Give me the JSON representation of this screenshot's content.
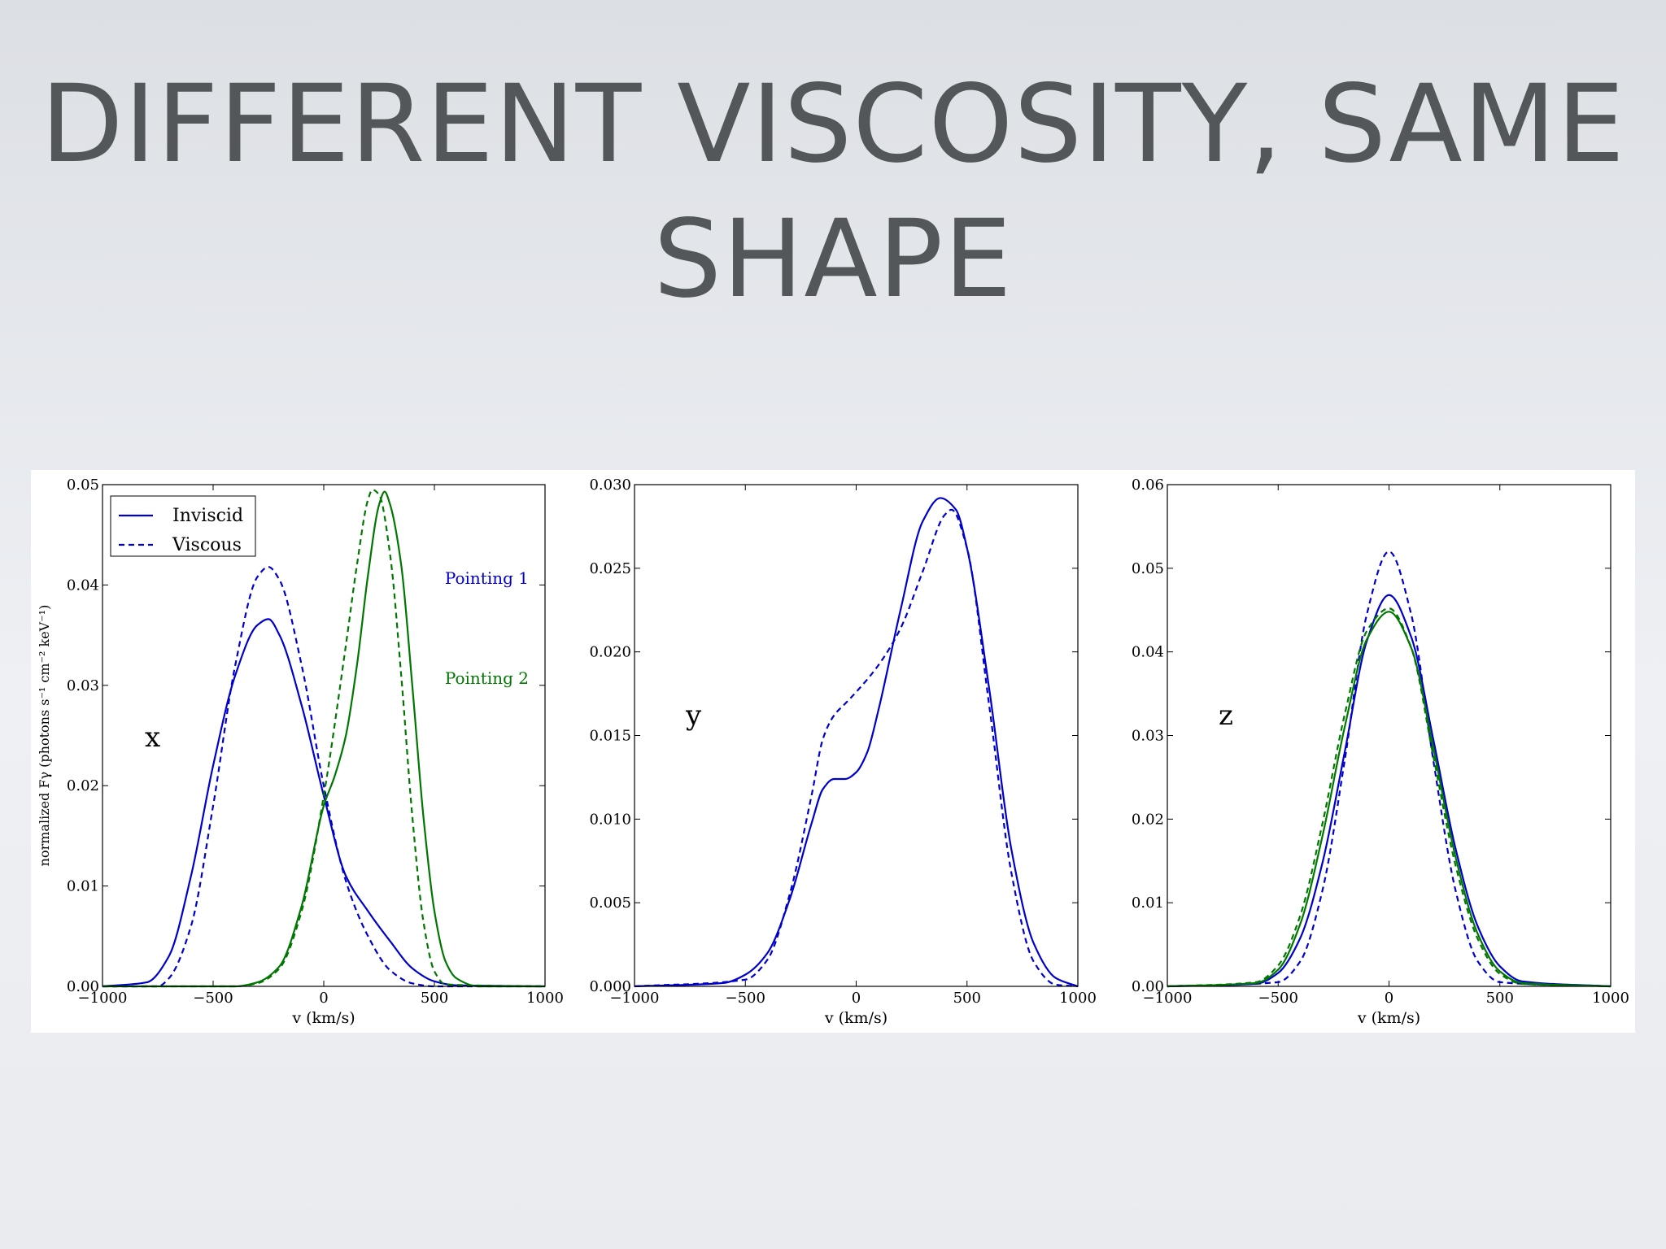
{
  "slide": {
    "title_line1": "DIFFERENT VISCOSITY, SAME",
    "title_line2": "SHAPE"
  },
  "colors": {
    "blue": "#0000cc",
    "green": "#007700",
    "axis": "#000000"
  },
  "legend": {
    "position": "top-left",
    "entries": [
      {
        "label": "Inviscid",
        "style": "solid"
      },
      {
        "label": "Viscous",
        "style": "dashed"
      }
    ]
  },
  "chart_data": [
    {
      "type": "line",
      "panel_label": "x",
      "xlabel": "v (km/s)",
      "ylabel": "normalized Fγ (photons s⁻¹ cm⁻² keV⁻¹)",
      "xlim": [
        -1000,
        1000
      ],
      "ylim": [
        0,
        0.05
      ],
      "xticks": [
        "−1000",
        "−500",
        "0",
        "500",
        "1000"
      ],
      "yticks": [
        "0.00",
        "0.01",
        "0.02",
        "0.03",
        "0.04",
        "0.05"
      ],
      "annotations": [
        {
          "text": "Pointing 1",
          "color": "blue"
        },
        {
          "text": "Pointing 2",
          "color": "green"
        }
      ],
      "series": [
        {
          "color": "blue",
          "style": "solid",
          "x": [
            -1000,
            -800,
            -700,
            -600,
            -500,
            -400,
            -300,
            -250,
            -200,
            -100,
            0,
            100,
            200,
            300,
            400,
            500,
            600,
            1000
          ],
          "y": [
            0,
            0.0004,
            0.003,
            0.011,
            0.022,
            0.031,
            0.036,
            0.0366,
            0.035,
            0.028,
            0.019,
            0.011,
            0.0075,
            0.0045,
            0.0018,
            0.0005,
            0.0001,
            0
          ]
        },
        {
          "color": "blue",
          "style": "dashed",
          "x": [
            -1000,
            -750,
            -700,
            -600,
            -500,
            -400,
            -300,
            -250,
            -200,
            -100,
            0,
            100,
            200,
            300,
            400,
            500,
            1000
          ],
          "y": [
            0,
            0,
            0.0008,
            0.006,
            0.018,
            0.032,
            0.0408,
            0.0418,
            0.0405,
            0.032,
            0.02,
            0.0105,
            0.005,
            0.0016,
            0.0003,
            0,
            0
          ]
        },
        {
          "color": "green",
          "style": "solid",
          "x": [
            -1000,
            -400,
            -300,
            -200,
            -100,
            0,
            50,
            100,
            150,
            200,
            250,
            275,
            300,
            350,
            400,
            450,
            500,
            550,
            600,
            700,
            1000
          ],
          "y": [
            0,
            0,
            0.0004,
            0.002,
            0.008,
            0.018,
            0.021,
            0.025,
            0.032,
            0.041,
            0.048,
            0.0493,
            0.048,
            0.042,
            0.03,
            0.017,
            0.0075,
            0.0025,
            0.0008,
            0,
            0
          ]
        },
        {
          "color": "green",
          "style": "dashed",
          "x": [
            -1000,
            -400,
            -300,
            -200,
            -100,
            0,
            100,
            150,
            200,
            220,
            250,
            300,
            350,
            400,
            450,
            500,
            550,
            1000
          ],
          "y": [
            0,
            0,
            0.0003,
            0.0018,
            0.0075,
            0.019,
            0.034,
            0.042,
            0.0485,
            0.0495,
            0.049,
            0.043,
            0.031,
            0.017,
            0.0065,
            0.0015,
            0.0002,
            0
          ]
        }
      ]
    },
    {
      "type": "line",
      "panel_label": "y",
      "xlabel": "v (km/s)",
      "ylabel": "",
      "xlim": [
        -1000,
        1000
      ],
      "ylim": [
        0,
        0.03
      ],
      "xticks": [
        "−1000",
        "−500",
        "0",
        "500",
        "1000"
      ],
      "yticks": [
        "0.000",
        "0.005",
        "0.010",
        "0.015",
        "0.020",
        "0.025",
        "0.030"
      ],
      "annotations": [],
      "series": [
        {
          "color": "blue",
          "style": "solid",
          "x": [
            -1000,
            -600,
            -500,
            -400,
            -300,
            -200,
            -150,
            -100,
            -50,
            0,
            50,
            100,
            200,
            300,
            380,
            450,
            500,
            600,
            700,
            800,
            900,
            1000
          ],
          "y": [
            0,
            0.0002,
            0.0007,
            0.002,
            0.0052,
            0.0098,
            0.0118,
            0.0124,
            0.0124,
            0.0128,
            0.014,
            0.0165,
            0.0225,
            0.0278,
            0.0292,
            0.0285,
            0.0262,
            0.0178,
            0.0082,
            0.0026,
            0.0005,
            0
          ]
        },
        {
          "color": "blue",
          "style": "dashed",
          "x": [
            -1000,
            -500,
            -400,
            -300,
            -200,
            -150,
            -100,
            -50,
            0,
            100,
            200,
            300,
            400,
            430,
            500,
            600,
            700,
            800,
            900,
            1000
          ],
          "y": [
            0,
            0.0004,
            0.0016,
            0.0055,
            0.0115,
            0.0148,
            0.0162,
            0.0169,
            0.0176,
            0.0192,
            0.0214,
            0.0248,
            0.0282,
            0.0285,
            0.0262,
            0.0168,
            0.0068,
            0.0015,
            0.0001,
            0
          ]
        }
      ]
    },
    {
      "type": "line",
      "panel_label": "z",
      "xlabel": "v (km/s)",
      "ylabel": "",
      "xlim": [
        -1000,
        1000
      ],
      "ylim": [
        0,
        0.06
      ],
      "xticks": [
        "−1000",
        "−500",
        "0",
        "500",
        "1000"
      ],
      "yticks": [
        "0.00",
        "0.01",
        "0.02",
        "0.03",
        "0.04",
        "0.05",
        "0.06"
      ],
      "annotations": [],
      "series": [
        {
          "color": "blue",
          "style": "solid",
          "x": [
            -1000,
            -600,
            -500,
            -400,
            -300,
            -200,
            -100,
            0,
            100,
            200,
            300,
            400,
            500,
            600,
            1000
          ],
          "y": [
            0,
            0.0003,
            0.0016,
            0.0058,
            0.0148,
            0.028,
            0.0413,
            0.0468,
            0.0418,
            0.0295,
            0.0165,
            0.0072,
            0.0024,
            0.0006,
            0
          ]
        },
        {
          "color": "blue",
          "style": "dashed",
          "x": [
            -1000,
            -500,
            -400,
            -300,
            -200,
            -100,
            0,
            100,
            200,
            300,
            400,
            500,
            1000
          ],
          "y": [
            0,
            0.0005,
            0.003,
            0.0115,
            0.027,
            0.0445,
            0.052,
            0.0445,
            0.027,
            0.0115,
            0.003,
            0.0005,
            0
          ]
        },
        {
          "color": "green",
          "style": "solid",
          "x": [
            -1000,
            -600,
            -500,
            -400,
            -300,
            -200,
            -100,
            0,
            100,
            200,
            300,
            400,
            500,
            600,
            1000
          ],
          "y": [
            0,
            0.0004,
            0.002,
            0.0075,
            0.018,
            0.031,
            0.0415,
            0.0448,
            0.0405,
            0.0285,
            0.0155,
            0.0063,
            0.0018,
            0.0004,
            0
          ]
        },
        {
          "color": "green",
          "style": "dashed",
          "x": [
            -1000,
            -600,
            -500,
            -400,
            -300,
            -200,
            -100,
            0,
            100,
            200,
            300,
            400,
            500,
            600,
            1000
          ],
          "y": [
            0,
            0.0005,
            0.0025,
            0.0085,
            0.0195,
            0.0325,
            0.0425,
            0.0452,
            0.0405,
            0.0275,
            0.0145,
            0.0057,
            0.0015,
            0.0003,
            0
          ]
        }
      ]
    }
  ]
}
